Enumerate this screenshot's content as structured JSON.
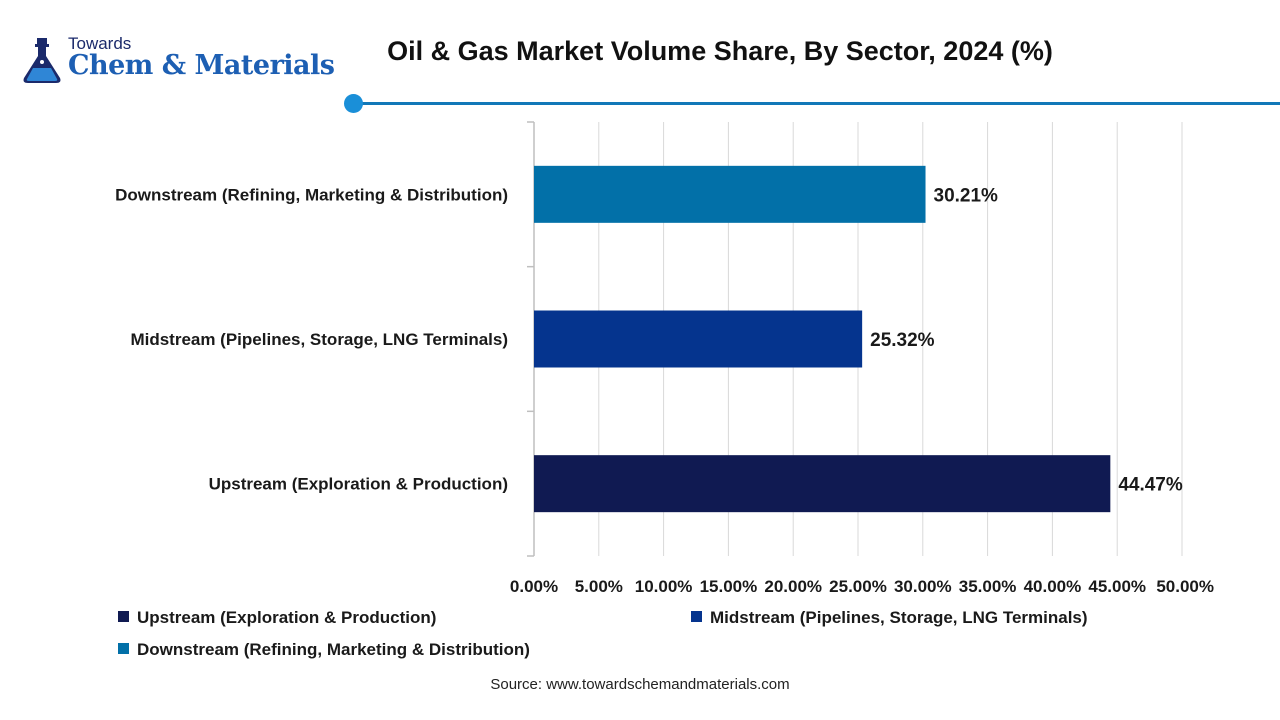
{
  "brand": {
    "towards": "Towards",
    "name": "Chem & Materials"
  },
  "colors": {
    "accent": "#1178b8",
    "upstream": "#101a52",
    "midstream": "#05348e",
    "downstream": "#0270a8"
  },
  "chart_data": {
    "type": "bar",
    "orientation": "horizontal",
    "title": "Oil & Gas Market Volume Share, By Sector, 2024 (%)",
    "categories": [
      "Downstream (Refining, Marketing & Distribution)",
      "Midstream (Pipelines, Storage, LNG Terminals)",
      "Upstream (Exploration & Production)"
    ],
    "values": [
      30.21,
      25.32,
      44.47
    ],
    "value_labels": [
      "30.21%",
      "25.32%",
      "44.47%"
    ],
    "bar_colors": [
      "#0270a8",
      "#05348e",
      "#101a52"
    ],
    "xlim": [
      0,
      50
    ],
    "x_ticks": [
      0,
      5,
      10,
      15,
      20,
      25,
      30,
      35,
      40,
      45,
      50
    ],
    "x_tick_labels": [
      "0.00%",
      "5.00%",
      "10.00%",
      "15.00%",
      "20.00%",
      "25.00%",
      "30.00%",
      "35.00%",
      "40.00%",
      "45.00%",
      "50.00%"
    ],
    "grid": true,
    "legend_position": "bottom",
    "legend": [
      {
        "name": "Upstream (Exploration & Production)",
        "color": "#101a52"
      },
      {
        "name": "Midstream (Pipelines, Storage, LNG Terminals)",
        "color": "#05348e"
      },
      {
        "name": "Downstream (Refining, Marketing & Distribution)",
        "color": "#0270a8"
      }
    ]
  },
  "source": "Source: www.towardschemandmaterials.com"
}
